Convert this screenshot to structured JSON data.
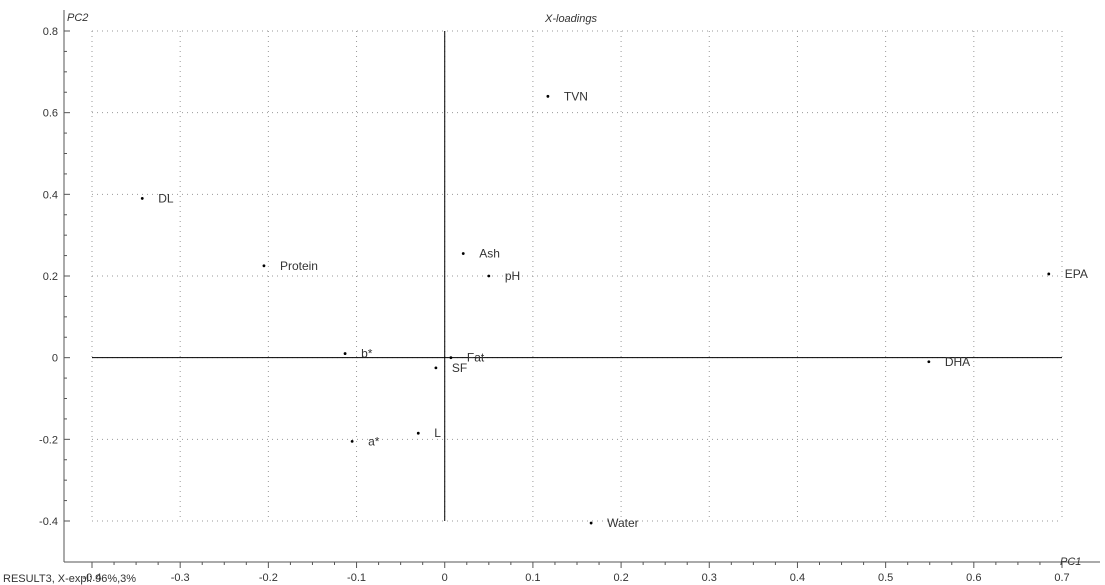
{
  "chart_data": {
    "type": "scatter",
    "title": "X-loadings",
    "xlabel": "PC1",
    "ylabel": "PC2",
    "xlim": [
      -0.4,
      0.7
    ],
    "ylim": [
      -0.4,
      0.8
    ],
    "grid": true,
    "x_ticks": [
      -0.4,
      -0.3,
      -0.2,
      -0.1,
      0,
      0.1,
      0.2,
      0.3,
      0.4,
      0.5,
      0.6,
      0.7
    ],
    "y_ticks": [
      -0.4,
      -0.2,
      0,
      0.2,
      0.4,
      0.6,
      0.8
    ],
    "x_tick_labels": [
      "-0.4",
      "-0.3",
      "-0.2",
      "-0.1",
      "0",
      "0.1",
      "0.2",
      "0.3",
      "0.4",
      "0.5",
      "0.6",
      "0.7"
    ],
    "y_tick_labels": [
      "-0.4",
      "-0.2",
      "0",
      "0.2",
      "0.4",
      "0.6",
      "0.8"
    ],
    "points": [
      {
        "label": "DL",
        "x": -0.343,
        "y": 0.39
      },
      {
        "label": "Protein",
        "x": -0.205,
        "y": 0.225
      },
      {
        "label": "TVN",
        "x": 0.117,
        "y": 0.64
      },
      {
        "label": "Ash",
        "x": 0.021,
        "y": 0.255
      },
      {
        "label": "pH",
        "x": 0.05,
        "y": 0.2
      },
      {
        "label": "EPA",
        "x": 0.685,
        "y": 0.205
      },
      {
        "label": "b*",
        "x": -0.113,
        "y": 0.01
      },
      {
        "label": "Fat",
        "x": 0.007,
        "y": 0.0
      },
      {
        "label": "SF",
        "x": -0.01,
        "y": -0.025
      },
      {
        "label": "DHA",
        "x": 0.549,
        "y": -0.01
      },
      {
        "label": "L",
        "x": -0.03,
        "y": -0.185
      },
      {
        "label": "a*",
        "x": -0.105,
        "y": -0.205
      },
      {
        "label": "Water",
        "x": 0.166,
        "y": -0.405
      }
    ]
  },
  "footer": {
    "text": "RESULT3, X-expl: 96%,3%"
  }
}
